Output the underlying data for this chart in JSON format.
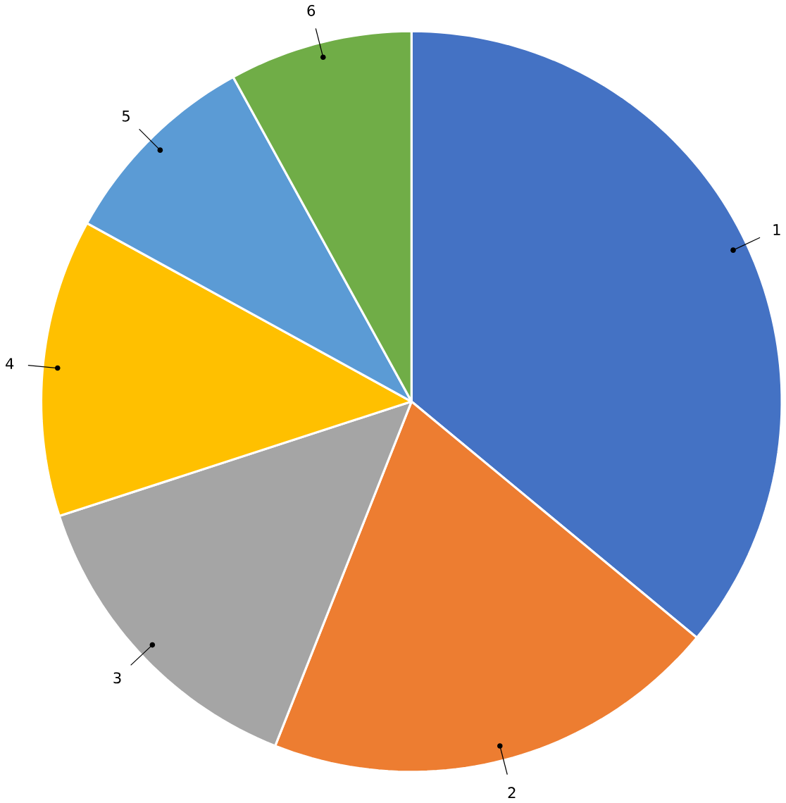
{
  "chart_data": {
    "type": "pie",
    "categories": [
      "1",
      "2",
      "3",
      "4",
      "5",
      "6"
    ],
    "values": [
      36,
      20,
      14,
      13,
      9,
      8
    ],
    "colors": [
      "#4472c4",
      "#ed7d31",
      "#a5a5a5",
      "#ffc000",
      "#5b9bd5",
      "#70ad47"
    ]
  }
}
